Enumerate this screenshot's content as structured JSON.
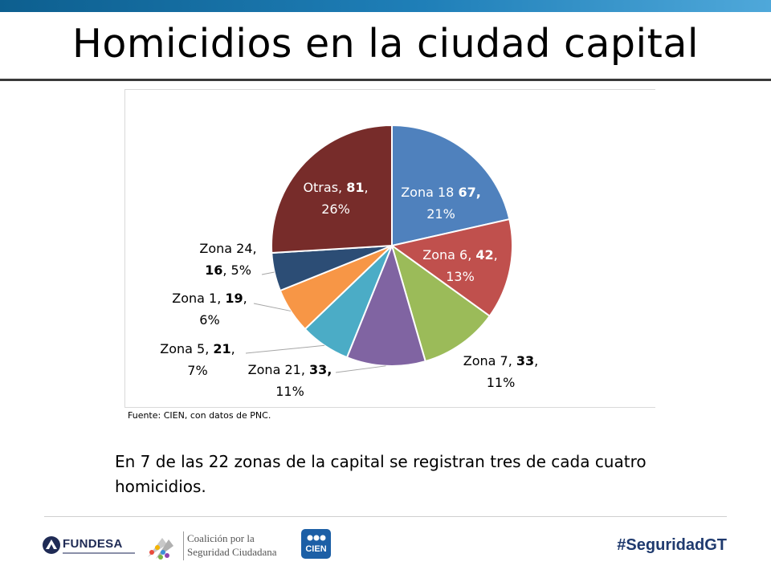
{
  "slide": {
    "title": "Homicidios en la ciudad capital",
    "body_text": "En 7 de las 22 zonas de la capital se registran tres de cada cuatro homicidios."
  },
  "chart_data": {
    "type": "pie",
    "title": "",
    "source": "Fuente: CIEN, con datos de PNC.",
    "slices": [
      {
        "label": "Zona 18",
        "value": 67,
        "percent": "21%",
        "color": "#4f81bd"
      },
      {
        "label": "Zona 6",
        "value": 42,
        "percent": "13%",
        "color": "#c0504d"
      },
      {
        "label": "Zona 7",
        "value": 33,
        "percent": "11%",
        "color": "#9bbb59"
      },
      {
        "label": "Zona 21",
        "value": 33,
        "percent": "11%",
        "color": "#8064a2"
      },
      {
        "label": "Zona 5",
        "value": 21,
        "percent": "7%",
        "color": "#4bacc6"
      },
      {
        "label": "Zona 1",
        "value": 19,
        "percent": "6%",
        "color": "#f79646"
      },
      {
        "label": "Zona 24",
        "value": 16,
        "percent": "5%",
        "color": "#2c4d75"
      },
      {
        "label": "Otras",
        "value": 81,
        "percent": "26%",
        "color": "#772c2a"
      }
    ]
  },
  "footer": {
    "logos": {
      "fundesa": "FUNDESA",
      "coalicion_line1": "Coalición por la",
      "coalicion_line2": "Seguridad Ciudadana",
      "cien": "CIEN"
    },
    "hashtag": "#SeguridadGT"
  }
}
